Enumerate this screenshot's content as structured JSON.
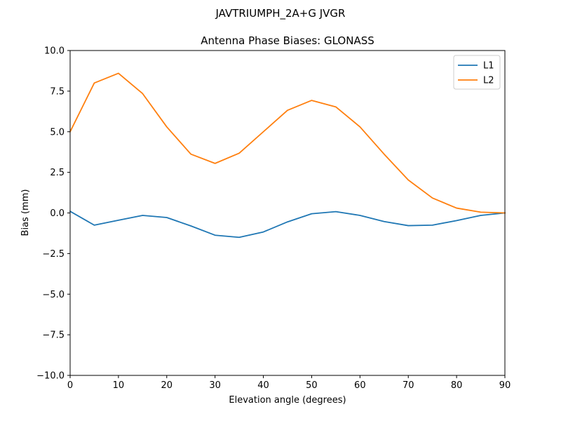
{
  "chart_data": {
    "type": "line",
    "suptitle": "JAVTRIUMPH_2A+G JVGR",
    "title": "Antenna Phase Biases: GLONASS",
    "xlabel": "Elevation angle (degrees)",
    "ylabel": "Bias (mm)",
    "xlim": [
      0,
      90
    ],
    "ylim": [
      -10,
      10
    ],
    "xticks": [
      0,
      10,
      20,
      30,
      40,
      50,
      60,
      70,
      80,
      90
    ],
    "yticks": [
      -10.0,
      -7.5,
      -5.0,
      -2.5,
      0.0,
      2.5,
      5.0,
      7.5,
      10.0
    ],
    "ytick_labels": [
      "−10.0",
      "−7.5",
      "−5.0",
      "−2.5",
      "0.0",
      "2.5",
      "5.0",
      "7.5",
      "10.0"
    ],
    "grid": false,
    "legend_position": "top-right",
    "x": [
      0,
      5,
      10,
      15,
      20,
      25,
      30,
      35,
      40,
      45,
      50,
      55,
      60,
      65,
      70,
      75,
      80,
      85,
      90
    ],
    "series": [
      {
        "name": "L1",
        "color": "#1f77b4",
        "values": [
          0.1,
          -0.75,
          -0.45,
          -0.15,
          -0.28,
          -0.8,
          -1.37,
          -1.5,
          -1.17,
          -0.55,
          -0.05,
          0.08,
          -0.15,
          -0.53,
          -0.78,
          -0.75,
          -0.47,
          -0.15,
          0.0
        ]
      },
      {
        "name": "L2",
        "color": "#ff7f0e",
        "values": [
          5.0,
          8.0,
          8.6,
          7.35,
          5.3,
          3.62,
          3.05,
          3.68,
          5.0,
          6.32,
          6.93,
          6.53,
          5.3,
          3.62,
          2.03,
          0.92,
          0.3,
          0.05,
          0.0
        ]
      }
    ]
  }
}
